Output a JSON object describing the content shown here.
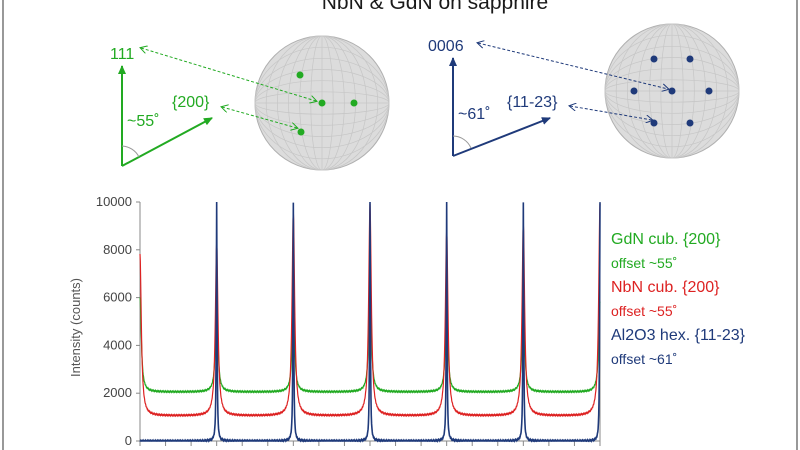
{
  "title": "NbN & GdN on sapphire",
  "colors": {
    "gdn": "#22aa22",
    "nbn": "#dd2222",
    "al2o3": "#1f3a7a",
    "pole_fill": "#dcdcdc",
    "pole_grid": "#c4c4c4"
  },
  "diagrams": {
    "left": {
      "vertical_label": "111",
      "inclined_label": "{200}",
      "angle_label": "~55˚",
      "pole_figure": {
        "grid": true,
        "dots": [
          "center",
          "upper",
          "right",
          "lower"
        ]
      }
    },
    "right": {
      "vertical_label": "0006",
      "inclined_label": "{11-23}",
      "angle_label": "~61˚",
      "pole_figure": {
        "grid": true,
        "dots": [
          "center",
          "ring-60",
          "ring-120",
          "ring-180",
          "ring-240",
          "ring-300",
          "ring-360"
        ]
      }
    }
  },
  "chart_data": {
    "type": "line",
    "title": "",
    "ylabel": "Intensity (counts)",
    "xlabel": "",
    "ylim": [
      0,
      10000
    ],
    "yticks": [
      0,
      2000,
      4000,
      6000,
      8000,
      10000
    ],
    "xlim": [
      0,
      360
    ],
    "grid": false,
    "legend_position": "right",
    "series": [
      {
        "name": "GdN cub. {200}",
        "note": "offset ~55˚",
        "color": "#22aa22",
        "baseline": 2050,
        "peak_x": [
          0,
          60,
          120,
          180,
          240,
          300,
          360
        ],
        "peak_y": [
          6000,
          5600,
          5500,
          6500,
          5600,
          5600,
          5800
        ]
      },
      {
        "name": "NbN cub. {200}",
        "note": "offset ~55˚",
        "color": "#dd2222",
        "baseline": 1050,
        "peak_x": [
          0,
          60,
          120,
          180,
          240,
          300,
          360
        ],
        "peak_y": [
          7800,
          8300,
          9600,
          9900,
          8800,
          9100,
          9900
        ]
      },
      {
        "name": "Al2O3 hex. {11-23}",
        "note": "offset ~61˚",
        "color": "#1f3a7a",
        "baseline": 0,
        "peak_x": [
          60,
          120,
          180,
          240,
          300,
          360
        ],
        "peak_y": [
          10000,
          10000,
          10000,
          10000,
          10000,
          10000
        ]
      }
    ]
  }
}
